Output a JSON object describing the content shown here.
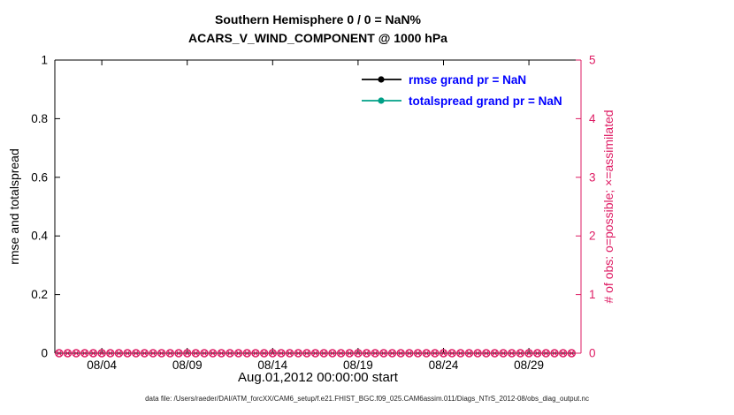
{
  "title": {
    "line1": "Southern Hemisphere 0 / 0 = NaN%",
    "line2": "ACARS_V_WIND_COMPONENT @ 1000 hPa"
  },
  "axes": {
    "left": {
      "label": "rmse and totalspread",
      "ticks": [
        "0",
        "0.2",
        "0.4",
        "0.6",
        "0.8",
        "1"
      ],
      "tick_values": [
        0,
        0.2,
        0.4,
        0.6,
        0.8,
        1
      ],
      "range": [
        0,
        1
      ],
      "color": "#000000"
    },
    "right": {
      "label": "# of obs: o=possible; ×=assimilated",
      "ticks": [
        "0",
        "1",
        "2",
        "3",
        "4",
        "5"
      ],
      "tick_values": [
        0,
        1,
        2,
        3,
        4,
        5
      ],
      "range": [
        0,
        5
      ],
      "color": "#de1b63"
    },
    "x": {
      "label": "Aug.01,2012 00:00:00 start",
      "tick_labels": [
        "08/04",
        "08/09",
        "08/14",
        "08/19",
        "08/24",
        "08/29"
      ],
      "tick_days": [
        4,
        9,
        14,
        19,
        24,
        29
      ],
      "range_days": [
        1.25,
        32.05
      ]
    }
  },
  "legend_entries": [
    {
      "label": "rmse grand pr = NaN",
      "color": "#000000"
    },
    {
      "label": "totalspread grand pr = NaN",
      "color": "#00a087"
    }
  ],
  "legend_text_color": "#0000ff",
  "footer": "data file: /Users/raeder/DAI/ATM_forcXX/CAM6_setup/f.e21.FHIST_BGC.f09_025.CAM6assim.011/Diags_NTrS_2012-08/obs_diag_output.nc",
  "chart_data": {
    "type": "line",
    "title": "Southern Hemisphere 0 / 0 = NaN% — ACARS_V_WIND_COMPONENT @ 1000 hPa",
    "xlabel": "Aug.01,2012 00:00:00 start",
    "ylabel_left": "rmse and totalspread",
    "ylabel_right": "# of obs: o=possible; ×=assimilated",
    "x_tick_labels": [
      "08/04",
      "08/09",
      "08/14",
      "08/19",
      "08/24",
      "08/29"
    ],
    "ylim_left": [
      0,
      1
    ],
    "ylim_right": [
      0,
      5
    ],
    "grid": false,
    "legend_position": "upper-right-inside",
    "series": [
      {
        "name": "rmse",
        "axis": "left",
        "color": "#000000",
        "values": "NaN (nothing plotted)"
      },
      {
        "name": "totalspread",
        "axis": "left",
        "color": "#00a087",
        "values": "NaN (nothing plotted)"
      },
      {
        "name": "# of obs possible",
        "axis": "right",
        "marker": "o",
        "color": "#de1b63",
        "x_days": {
          "start": 1.5,
          "step": 0.5,
          "count": 61
        },
        "y_constant": 0
      },
      {
        "name": "# of obs assimilated",
        "axis": "right",
        "marker": "x",
        "color": "#de1b63",
        "x_days": {
          "start": 1.5,
          "step": 0.5,
          "count": 61
        },
        "y_constant": 0
      }
    ]
  }
}
